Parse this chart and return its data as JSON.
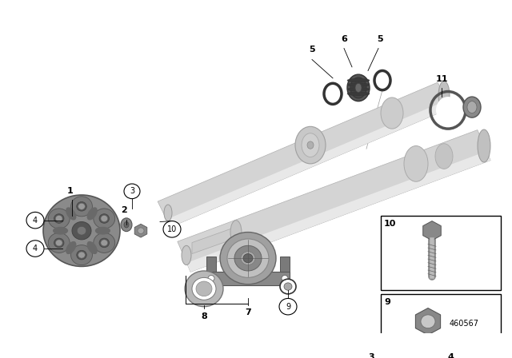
{
  "bg_color": "#ffffff",
  "diagram_number": "460567",
  "fig_width": 6.4,
  "fig_height": 4.48,
  "dpi": 100,
  "shaft_color": "#d8d8d8",
  "shaft_edge": "#bbbbbb",
  "disc_color": "#909090",
  "mount_color": "#aaaaaa",
  "callout_nums": [
    "1",
    "2",
    "3",
    "4",
    "4",
    "5",
    "5",
    "6",
    "7",
    "8",
    "9",
    "10",
    "11"
  ]
}
